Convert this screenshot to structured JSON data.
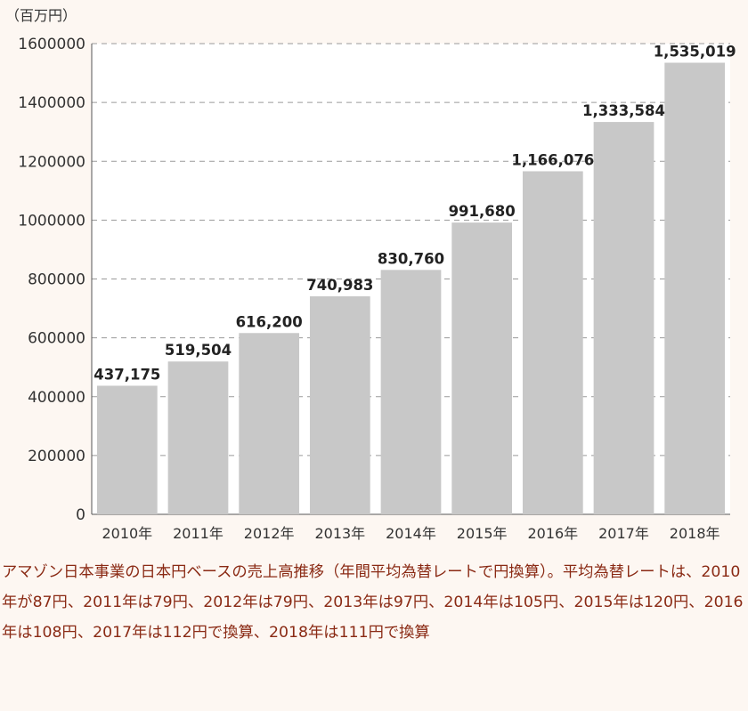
{
  "chart_data": {
    "type": "bar",
    "unit_label": "（百万円）",
    "categories": [
      "2010年",
      "2011年",
      "2012年",
      "2013年",
      "2014年",
      "2015年",
      "2016年",
      "2017年",
      "2018年"
    ],
    "values": [
      437175,
      519504,
      616200,
      740983,
      830760,
      991680,
      1166076,
      1333584,
      1535019
    ],
    "value_labels": [
      "437,175",
      "519,504",
      "616,200",
      "740,983",
      "830,760",
      "991,680",
      "1,166,076",
      "1,333,584",
      "1,535,019"
    ],
    "yticks": [
      "0",
      "200000",
      "400000",
      "600000",
      "800000",
      "1000000",
      "1200000",
      "1400000",
      "1600000"
    ],
    "ylim": [
      0,
      1600000
    ],
    "grid": true,
    "bar_color": "#c8c8c8"
  },
  "caption": "アマゾン日本事業の日本円ベースの売上高推移（年間平均為替レートで円換算）。平均為替レートは、2010年が87円、2011年は79円、2012年は79円、2013年は97円、2014年は105円、2015年は120円、2016年は108円、2017年は112円で換算、2018年は111円で換算"
}
